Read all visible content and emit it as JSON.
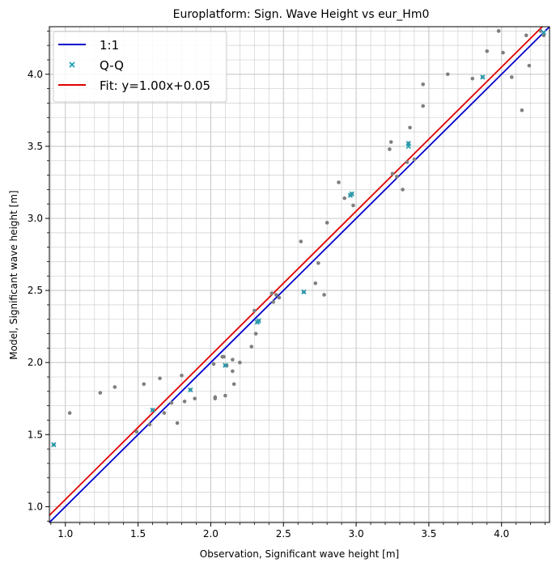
{
  "chart_data": {
    "type": "scatter",
    "title": "Europlatform: Sign. Wave Height vs eur_Hm0",
    "xlabel": "Observation, Significant wave height [m]",
    "ylabel": "Model, Significant wave height [m]",
    "xlim": [
      0.89,
      4.33
    ],
    "ylim": [
      0.89,
      4.33
    ],
    "x_ticks": [
      "1.0",
      "1.5",
      "2.0",
      "2.5",
      "3.0",
      "3.5",
      "4.0"
    ],
    "y_ticks": [
      "1.0",
      "1.5",
      "2.0",
      "2.5",
      "3.0",
      "3.5",
      "4.0"
    ],
    "grid": true,
    "legend_position": "top-left",
    "legend": [
      {
        "label": "1:1",
        "style": "line",
        "color": "#0000cc"
      },
      {
        "label": "Q-Q",
        "style": "marker",
        "color": "#1f9fb4"
      },
      {
        "label": "Fit: y=1.00x+0.05",
        "style": "line",
        "color": "#e00000"
      }
    ],
    "lines": [
      {
        "name": "1:1",
        "slope": 1.0,
        "intercept": 0.0,
        "color": "#0000cc"
      },
      {
        "name": "Fit: y=1.00x+0.05",
        "slope": 1.0,
        "intercept": 0.05,
        "color": "#e00000"
      }
    ],
    "scatter_points": [
      [
        0.92,
        1.43
      ],
      [
        1.03,
        1.65
      ],
      [
        1.24,
        1.79
      ],
      [
        1.34,
        1.83
      ],
      [
        1.49,
        1.52
      ],
      [
        1.54,
        1.85
      ],
      [
        1.58,
        1.57
      ],
      [
        1.6,
        1.67
      ],
      [
        1.65,
        1.89
      ],
      [
        1.68,
        1.65
      ],
      [
        1.73,
        1.72
      ],
      [
        1.77,
        1.58
      ],
      [
        1.8,
        1.91
      ],
      [
        1.82,
        1.73
      ],
      [
        1.86,
        1.81
      ],
      [
        1.89,
        1.75
      ],
      [
        2.02,
        1.99
      ],
      [
        2.03,
        1.76
      ],
      [
        2.03,
        1.75
      ],
      [
        2.08,
        2.04
      ],
      [
        2.09,
        2.04
      ],
      [
        2.1,
        1.77
      ],
      [
        2.1,
        1.98
      ],
      [
        2.11,
        1.98
      ],
      [
        2.15,
        2.02
      ],
      [
        2.15,
        1.94
      ],
      [
        2.16,
        1.85
      ],
      [
        2.2,
        2.0
      ],
      [
        2.28,
        2.11
      ],
      [
        2.3,
        2.36
      ],
      [
        2.31,
        2.2
      ],
      [
        2.32,
        2.28
      ],
      [
        2.33,
        2.29
      ],
      [
        2.42,
        2.48
      ],
      [
        2.43,
        2.42
      ],
      [
        2.45,
        2.47
      ],
      [
        2.47,
        2.45
      ],
      [
        2.62,
        2.84
      ],
      [
        2.64,
        2.49
      ],
      [
        2.72,
        2.55
      ],
      [
        2.74,
        2.69
      ],
      [
        2.78,
        2.47
      ],
      [
        2.8,
        2.97
      ],
      [
        2.88,
        3.25
      ],
      [
        2.92,
        3.14
      ],
      [
        2.96,
        3.16
      ],
      [
        2.97,
        3.17
      ],
      [
        2.98,
        3.09
      ],
      [
        3.23,
        3.48
      ],
      [
        3.24,
        3.53
      ],
      [
        3.25,
        3.31
      ],
      [
        3.28,
        3.29
      ],
      [
        3.32,
        3.2
      ],
      [
        3.35,
        3.39
      ],
      [
        3.36,
        3.52
      ],
      [
        3.37,
        3.63
      ],
      [
        3.4,
        3.41
      ],
      [
        3.46,
        3.93
      ],
      [
        3.46,
        3.78
      ],
      [
        3.63,
        4.0
      ],
      [
        3.8,
        3.97
      ],
      [
        3.87,
        3.98
      ],
      [
        3.9,
        4.16
      ],
      [
        3.98,
        4.3
      ],
      [
        4.01,
        4.15
      ],
      [
        4.07,
        3.98
      ],
      [
        4.14,
        3.75
      ],
      [
        4.17,
        4.27
      ],
      [
        4.19,
        4.06
      ],
      [
        4.27,
        4.3
      ],
      [
        4.29,
        4.27
      ]
    ],
    "qq_points": [
      [
        0.92,
        1.43
      ],
      [
        1.6,
        1.67
      ],
      [
        1.86,
        1.81
      ],
      [
        2.1,
        1.98
      ],
      [
        2.32,
        2.28
      ],
      [
        2.33,
        2.29
      ],
      [
        2.64,
        2.49
      ],
      [
        2.96,
        3.16
      ],
      [
        2.97,
        3.17
      ],
      [
        3.36,
        3.5
      ],
      [
        3.36,
        3.52
      ],
      [
        3.87,
        3.98
      ],
      [
        4.29,
        4.29
      ]
    ],
    "colors": {
      "scatter": "#7f7f7f",
      "qq": "#1f9fb4",
      "one_to_one": "#0000cc",
      "fit": "#e00000",
      "grid": "#c8c8c8"
    }
  }
}
